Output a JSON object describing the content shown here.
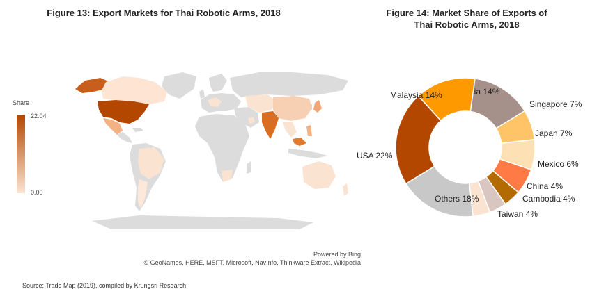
{
  "fig13": {
    "title": "Figure 13: Export Markets for Thai Robotic Arms, 2018",
    "legend_title": "Share",
    "legend_max": "22.04",
    "legend_min": "0.00",
    "powered_by": "Powered by Bing",
    "map_credit": "© GeoNames, HERE, MSFT, Microsoft, NavInfo, Thinkware Extract, Wikipedia",
    "colors": {
      "high": "#b34700",
      "low": "#fbe3d2",
      "none": "#dcdcdc",
      "ocean": "#ffffff"
    }
  },
  "fig14": {
    "title_line1": "Figure 14: Market Share of Exports of",
    "title_line2": "Thai Robotic Arms, 2018"
  },
  "source": "Source: Trade Map (2019), compiled by Krungsri Research",
  "chart_data": [
    {
      "type": "pie",
      "title": "Figure 14: Market Share of Exports of Thai Robotic Arms, 2018",
      "donut": true,
      "unit": "%",
      "slices": [
        {
          "label": "India 14%",
          "name": "India",
          "value": 14,
          "color": "#a6908a"
        },
        {
          "label": "Singapore 7%",
          "name": "Singapore",
          "value": 7,
          "color": "#ffc468"
        },
        {
          "label": "Japan 7%",
          "name": "Japan",
          "value": 7,
          "color": "#fde0b4"
        },
        {
          "label": "Mexico 6%",
          "name": "Mexico",
          "value": 6,
          "color": "#ff7a45"
        },
        {
          "label": "China 4%",
          "name": "China",
          "value": 4,
          "color": "#b36b00"
        },
        {
          "label": "Cambodia 4%",
          "name": "Cambodia",
          "value": 4,
          "color": "#d9c6c0"
        },
        {
          "label": "Taiwan 4%",
          "name": "Taiwan",
          "value": 4,
          "color": "#fbe3d2"
        },
        {
          "label": "Others 18%",
          "name": "Others",
          "value": 18,
          "color": "#c8c8c8"
        },
        {
          "label": "USA 22%",
          "name": "USA",
          "value": 22,
          "color": "#b34700"
        },
        {
          "label": "Malaysia 14%",
          "name": "Malaysia",
          "value": 14,
          "color": "#ff9900"
        }
      ]
    }
  ]
}
